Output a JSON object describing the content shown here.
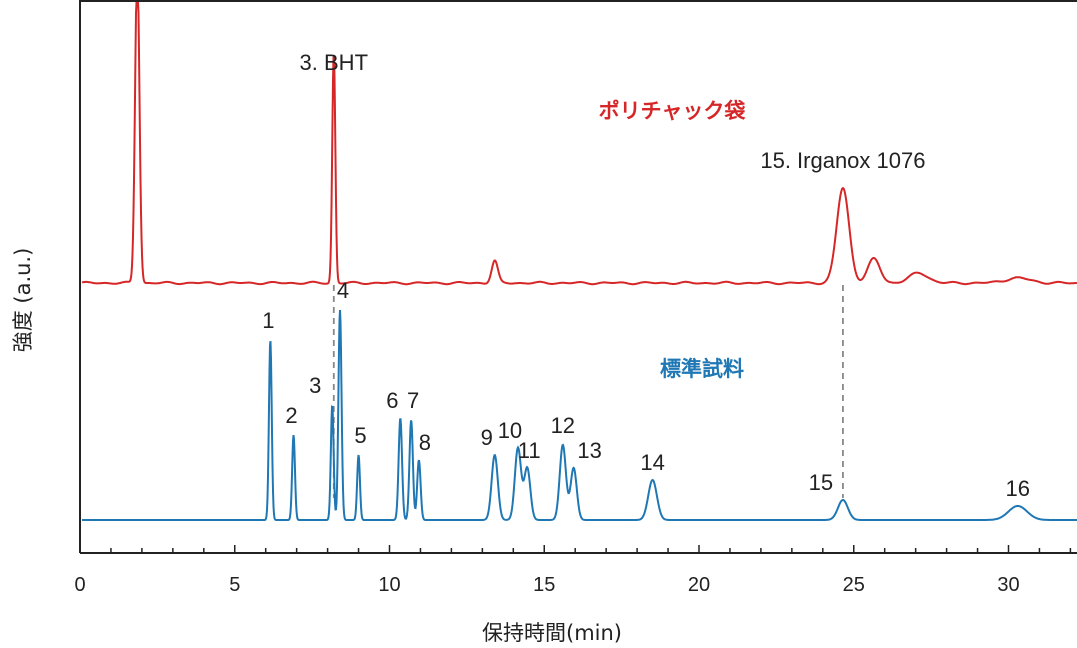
{
  "chart_data": {
    "type": "line",
    "xlabel": "保持時間(min)",
    "ylabel": "強度 (a.u.)",
    "xlim": [
      0,
      32
    ],
    "x_ticks": [
      "0",
      "5",
      "10",
      "15",
      "20",
      "25",
      "30"
    ],
    "minor_tick_step": 1,
    "y_ticks_shown": false,
    "grid": false,
    "colors": {
      "sample": "#d62728",
      "standard": "#1f77b4",
      "guide": "#888888"
    },
    "series": [
      {
        "name": "ポリチャック袋",
        "color": "#d62728",
        "baseline": 0,
        "peaks": [
          {
            "rt": 1.85,
            "height": 320,
            "width": 0.07,
            "label": ""
          },
          {
            "rt": 8.2,
            "height": 230,
            "width": 0.05,
            "label": "3. BHT"
          },
          {
            "rt": 13.4,
            "height": 22,
            "width": 0.1,
            "label": ""
          },
          {
            "rt": 24.65,
            "height": 95,
            "width": 0.2,
            "label": "15. Irganox 1076"
          },
          {
            "rt": 25.65,
            "height": 24,
            "width": 0.2,
            "label": ""
          },
          {
            "rt": 27.1,
            "height": 10,
            "width": 0.3,
            "label": ""
          },
          {
            "rt": 30.3,
            "height": 5,
            "width": 0.4,
            "label": ""
          }
        ]
      },
      {
        "name": "標準試料",
        "color": "#1f77b4",
        "baseline": 0,
        "peaks": [
          {
            "rt": 6.15,
            "height": 180,
            "width": 0.045,
            "label": "1"
          },
          {
            "rt": 6.9,
            "height": 85,
            "width": 0.045,
            "label": "2"
          },
          {
            "rt": 8.15,
            "height": 115,
            "width": 0.045,
            "label": "3"
          },
          {
            "rt": 8.4,
            "height": 210,
            "width": 0.05,
            "label": "4"
          },
          {
            "rt": 9.0,
            "height": 65,
            "width": 0.045,
            "label": "5"
          },
          {
            "rt": 10.35,
            "height": 102,
            "width": 0.055,
            "label": "6"
          },
          {
            "rt": 10.7,
            "height": 100,
            "width": 0.055,
            "label": "7"
          },
          {
            "rt": 10.95,
            "height": 60,
            "width": 0.055,
            "label": "8"
          },
          {
            "rt": 13.4,
            "height": 65,
            "width": 0.1,
            "label": "9"
          },
          {
            "rt": 14.15,
            "height": 72,
            "width": 0.1,
            "label": "10"
          },
          {
            "rt": 14.45,
            "height": 52,
            "width": 0.1,
            "label": "11"
          },
          {
            "rt": 15.6,
            "height": 75,
            "width": 0.1,
            "label": "12"
          },
          {
            "rt": 15.95,
            "height": 52,
            "width": 0.1,
            "label": "13"
          },
          {
            "rt": 18.5,
            "height": 40,
            "width": 0.14,
            "label": "14"
          },
          {
            "rt": 24.65,
            "height": 20,
            "width": 0.16,
            "label": "15"
          },
          {
            "rt": 30.3,
            "height": 14,
            "width": 0.3,
            "label": "16"
          }
        ]
      }
    ],
    "guides": [
      8.2,
      24.65
    ]
  }
}
